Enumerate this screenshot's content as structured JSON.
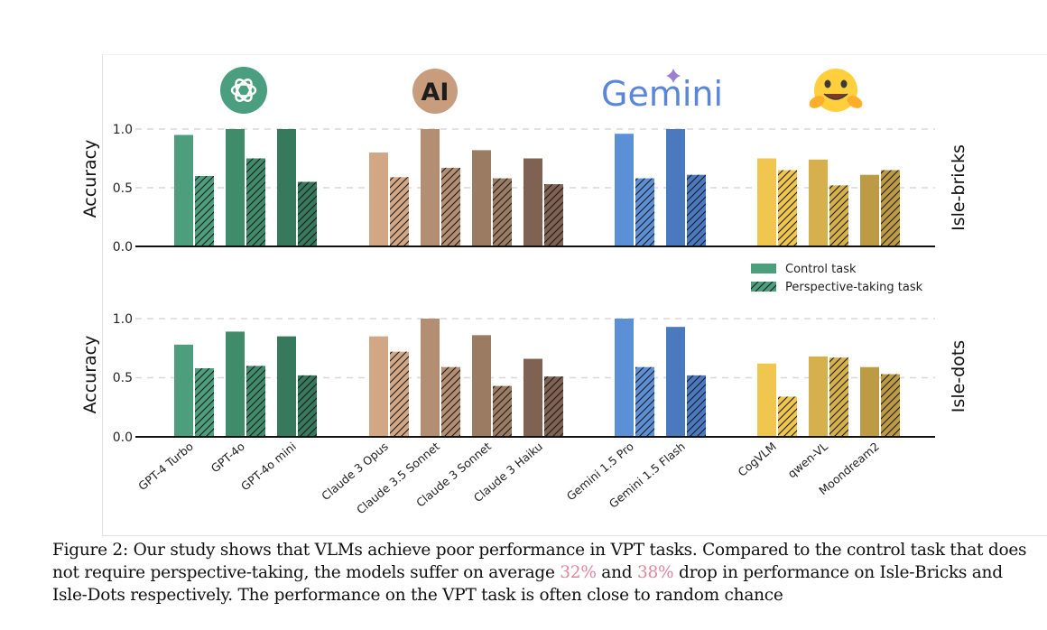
{
  "chart_data": [
    {
      "type": "bar",
      "title": "Isle-bricks",
      "ylabel": "Accuracy",
      "ylim": [
        0,
        1.0
      ],
      "yticks": [
        "0.0",
        "0.5",
        "1.0"
      ],
      "categories": [
        "GPT-4 Turbo",
        "GPT-4o",
        "GPT-4o mini",
        "Claude 3 Opus",
        "Claude 3.5 Sonnet",
        "Claude 3 Sonnet",
        "Claude 3 Haiku",
        "Gemini 1.5 Pro",
        "Gemini 1.5 Flash",
        "CogVLM",
        "qwen-VL",
        "Moondream2"
      ],
      "series": [
        {
          "name": "Control task",
          "values": [
            0.95,
            1.0,
            1.0,
            0.8,
            1.0,
            0.82,
            0.75,
            0.96,
            1.0,
            0.75,
            0.74,
            0.61
          ]
        },
        {
          "name": "Perspective-taking task",
          "values": [
            0.6,
            0.75,
            0.55,
            0.59,
            0.67,
            0.58,
            0.53,
            0.58,
            0.61,
            0.65,
            0.52,
            0.65
          ]
        }
      ]
    },
    {
      "type": "bar",
      "title": "Isle-dots",
      "ylabel": "Accuracy",
      "ylim": [
        0,
        1.0
      ],
      "yticks": [
        "0.0",
        "0.5",
        "1.0"
      ],
      "categories": [
        "GPT-4 Turbo",
        "GPT-4o",
        "GPT-4o mini",
        "Claude 3 Opus",
        "Claude 3.5 Sonnet",
        "Claude 3 Sonnet",
        "Claude 3 Haiku",
        "Gemini 1.5 Pro",
        "Gemini 1.5 Flash",
        "CogVLM",
        "qwen-VL",
        "Moondream2"
      ],
      "series": [
        {
          "name": "Control task",
          "values": [
            0.78,
            0.89,
            0.85,
            0.85,
            1.0,
            0.86,
            0.66,
            1.0,
            0.93,
            0.62,
            0.68,
            0.59
          ]
        },
        {
          "name": "Perspective-taking task",
          "values": [
            0.58,
            0.6,
            0.52,
            0.72,
            0.59,
            0.43,
            0.51,
            0.59,
            0.52,
            0.34,
            0.67,
            0.53
          ]
        }
      ]
    }
  ],
  "legend": {
    "control": "Control task",
    "perspective": "Perspective-taking task"
  },
  "logos": {
    "openai": "openai-logo",
    "anthropic": "AI",
    "gemini": "Gemini",
    "huggingface": "huggingface-logo"
  },
  "colors": {
    "openai": [
      "#4c9e7c",
      "#3f8b6a",
      "#36795c"
    ],
    "anthropic": [
      "#d2a785",
      "#b48e72",
      "#9c7b63",
      "#7f6252"
    ],
    "google": [
      "#5b8fd6",
      "#4a79c0"
    ],
    "huggingface": [
      "#f0c64e",
      "#d6b04c",
      "#bd9b44"
    ]
  },
  "caption": {
    "label": "Figure 2:",
    "text1": " Our study shows that VLMs achieve poor performance in VPT tasks. Compared to the control task that does not require perspective-taking, the models suffer on average ",
    "pct1": "32%",
    "text2": " and ",
    "pct2": "38%",
    "text3": " drop in performance on Isle-Bricks and Isle-Dots respectively. The performance on the VPT task is often close to random chance"
  }
}
